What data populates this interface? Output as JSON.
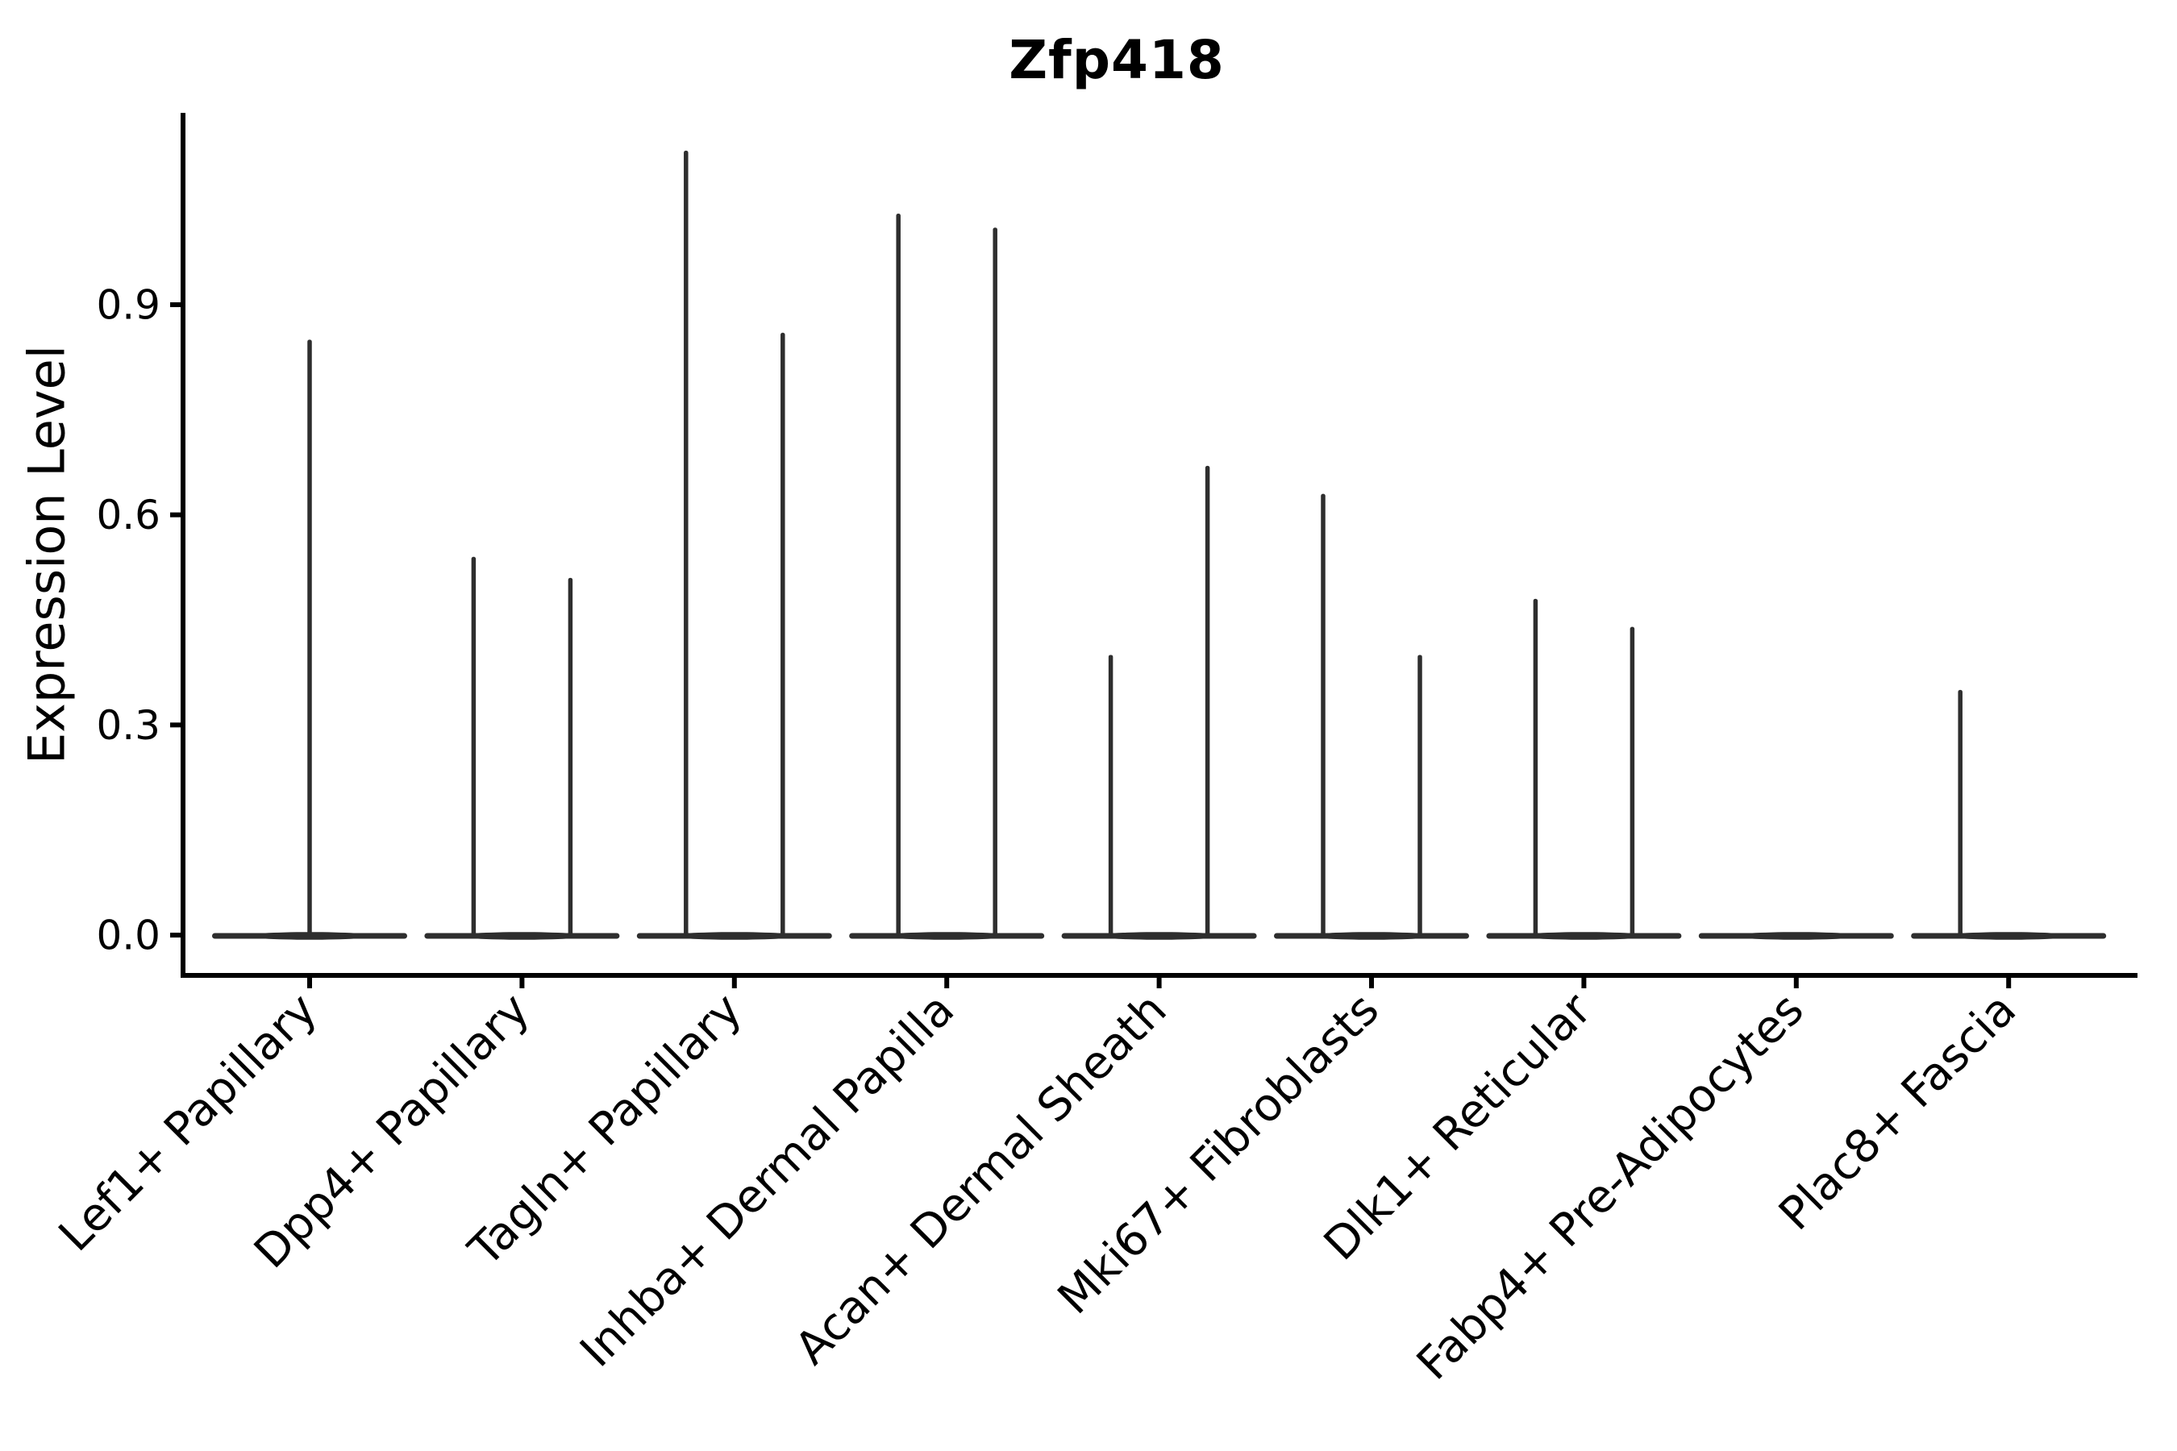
{
  "figure": {
    "background": "#ffffff"
  },
  "chart_data": {
    "type": "violin",
    "title": "Zfp418",
    "ylabel": "Expression Level",
    "xlabel": "",
    "ylim": [
      0,
      1.17
    ],
    "yticks": [
      "0.0",
      "0.3",
      "0.6",
      "0.9"
    ],
    "grid": false,
    "legend": null,
    "categories": [
      "Lef1+ Papillary",
      "Dpp4+ Papillary",
      "Tagln+ Papillary",
      "Inhba+ Dermal Papilla",
      "Acan+ Dermal Sheath",
      "Mki67+ Fibroblasts",
      "Dlk1+ Reticular",
      "Fabp4+ Pre-Adipocytes",
      "Plac8+ Fascia"
    ],
    "violins": [
      {
        "category": "Lef1+ Papillary",
        "baseline_value": 0.0,
        "spikes": [
          {
            "position": "center",
            "max_value": 0.85
          }
        ]
      },
      {
        "category": "Dpp4+ Papillary",
        "baseline_value": 0.0,
        "spikes": [
          {
            "position": "left",
            "max_value": 0.54
          },
          {
            "position": "right",
            "max_value": 0.51
          }
        ]
      },
      {
        "category": "Tagln+ Papillary",
        "baseline_value": 0.0,
        "spikes": [
          {
            "position": "left",
            "max_value": 1.12
          },
          {
            "position": "right",
            "max_value": 0.86
          }
        ]
      },
      {
        "category": "Inhba+ Dermal Papilla",
        "baseline_value": 0.0,
        "spikes": [
          {
            "position": "left",
            "max_value": 1.03
          },
          {
            "position": "right",
            "max_value": 1.01
          }
        ]
      },
      {
        "category": "Acan+ Dermal Sheath",
        "baseline_value": 0.0,
        "spikes": [
          {
            "position": "left",
            "max_value": 0.4
          },
          {
            "position": "right",
            "max_value": 0.67
          }
        ]
      },
      {
        "category": "Mki67+ Fibroblasts",
        "baseline_value": 0.0,
        "spikes": [
          {
            "position": "left",
            "max_value": 0.63
          },
          {
            "position": "right",
            "max_value": 0.4
          }
        ]
      },
      {
        "category": "Dlk1+ Reticular",
        "baseline_value": 0.0,
        "spikes": [
          {
            "position": "left",
            "max_value": 0.48
          },
          {
            "position": "right",
            "max_value": 0.44
          }
        ]
      },
      {
        "category": "Fabp4+ Pre-Adipocytes",
        "baseline_value": 0.0,
        "spikes": []
      },
      {
        "category": "Plac8+ Fascia",
        "baseline_value": 0.0,
        "spikes": [
          {
            "position": "left",
            "max_value": 0.35
          }
        ]
      }
    ],
    "colors": {
      "violin_stroke": "#2e2e2e",
      "axis": "#000000",
      "text": "#000000",
      "background": "#ffffff"
    }
  }
}
